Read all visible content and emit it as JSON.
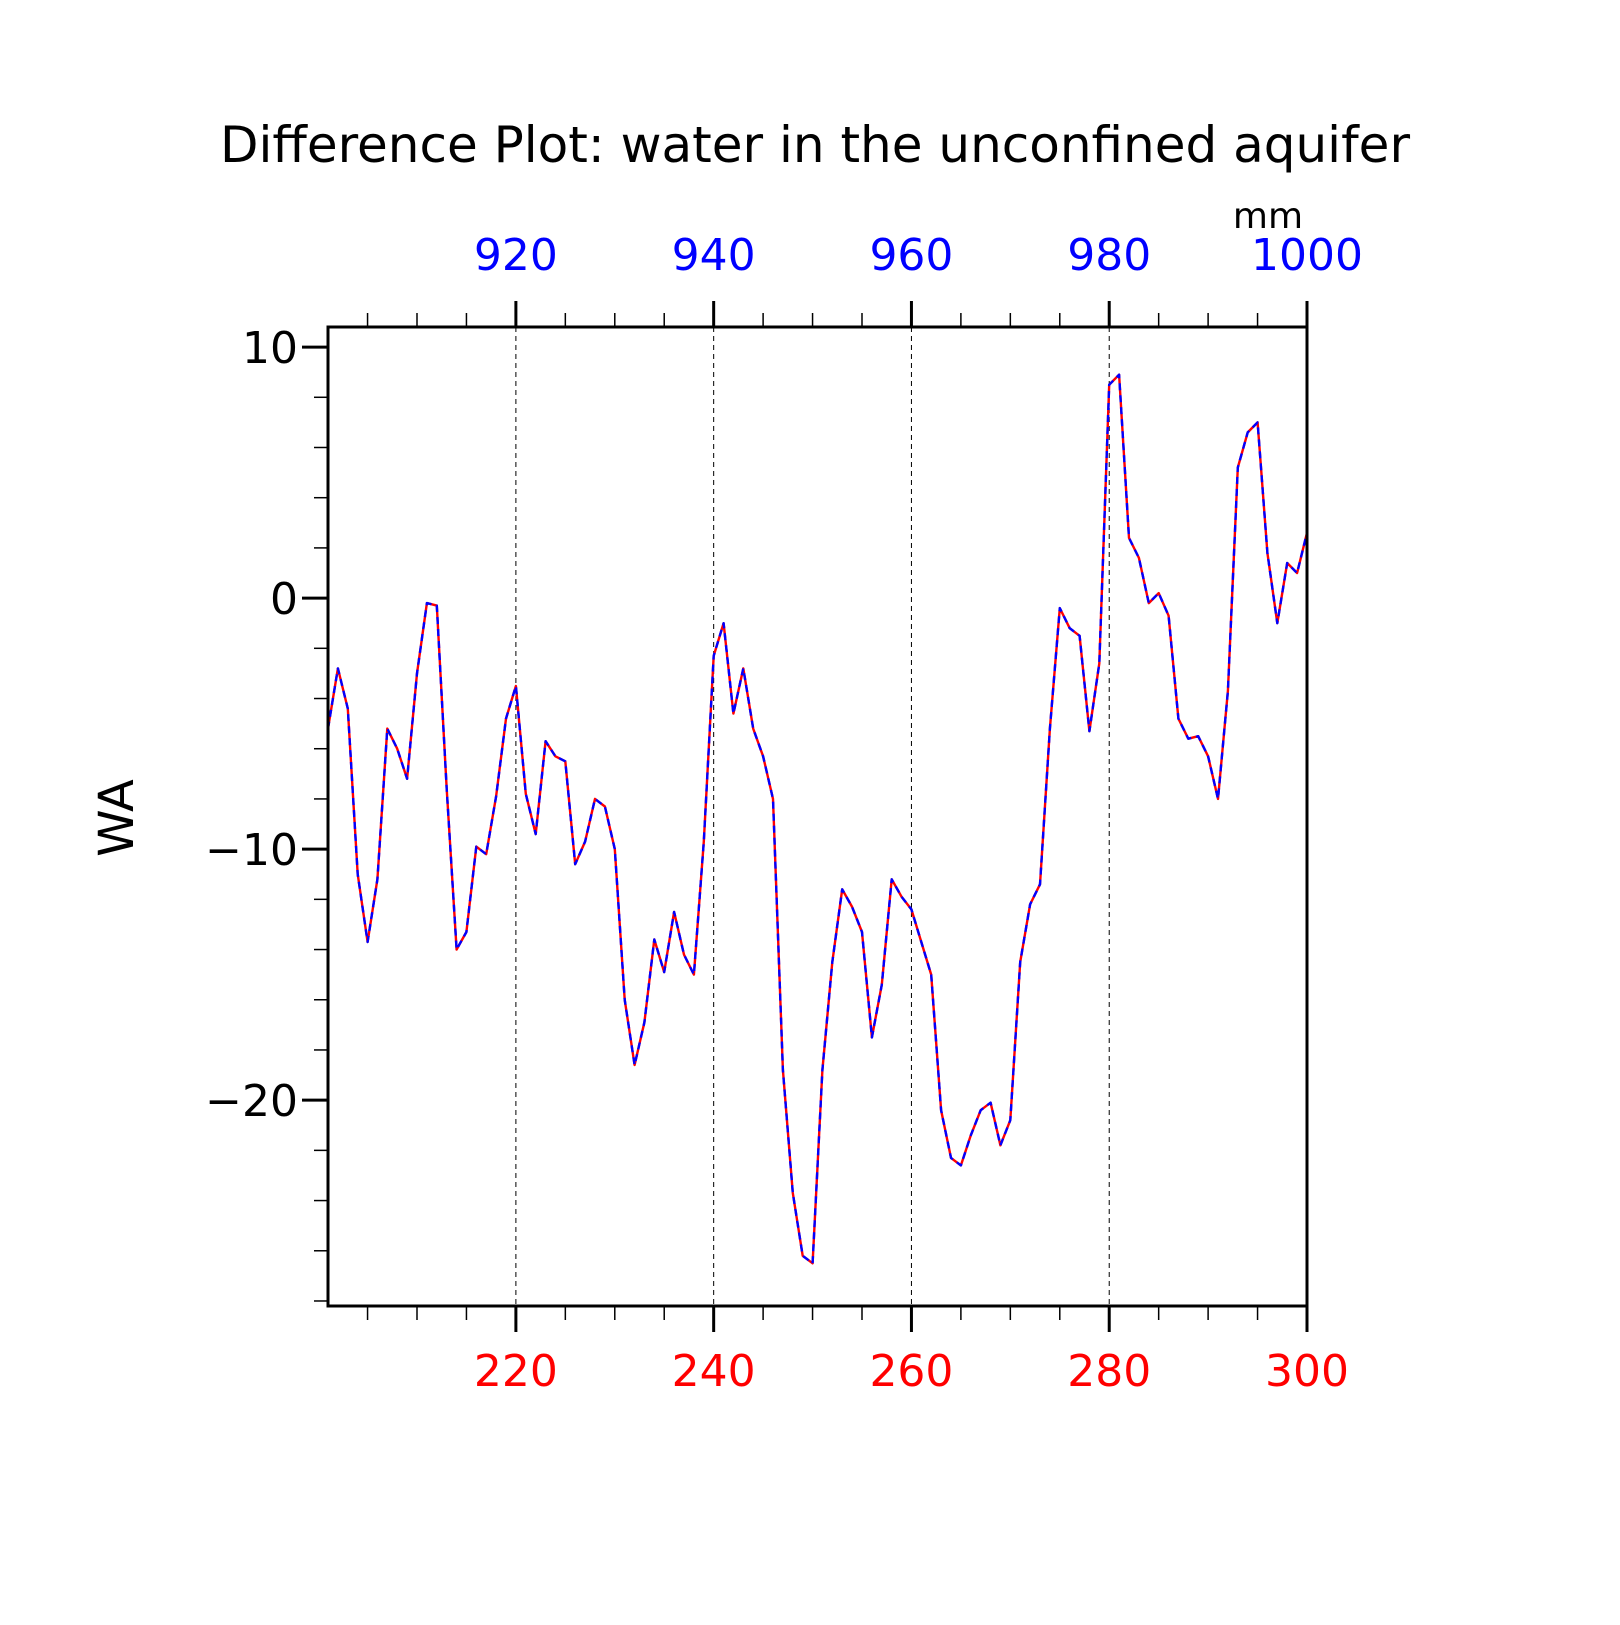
{
  "chart_data": {
    "type": "line",
    "title": "Difference Plot: water in the unconfined aquifer",
    "ylabel": "WA",
    "units_label": "mm",
    "x_bottom": {
      "ticks": [
        220,
        240,
        260,
        280,
        300
      ],
      "labels": [
        "220",
        "240",
        "260",
        "280",
        "300"
      ],
      "range": [
        201,
        300
      ],
      "color": "#ff0000"
    },
    "x_top": {
      "ticks": [
        920,
        940,
        960,
        980,
        1000
      ],
      "labels": [
        "920",
        "940",
        "960",
        "980",
        "1000"
      ],
      "range": [
        901,
        1000
      ],
      "color": "#0000ff"
    },
    "y_axis": {
      "ticks": [
        10,
        0,
        -10,
        -20
      ],
      "labels": [
        "10",
        "0",
        "−10",
        "−20"
      ],
      "range": [
        -28.2,
        10.8
      ]
    },
    "grid": "vertical-dashed",
    "x": [
      201,
      202,
      203,
      204,
      205,
      206,
      207,
      208,
      209,
      210,
      211,
      212,
      213,
      214,
      215,
      216,
      217,
      218,
      219,
      220,
      221,
      222,
      223,
      224,
      225,
      226,
      227,
      228,
      229,
      230,
      231,
      232,
      233,
      234,
      235,
      236,
      237,
      238,
      239,
      240,
      241,
      242,
      243,
      244,
      245,
      246,
      247,
      248,
      249,
      250,
      251,
      252,
      253,
      254,
      255,
      256,
      257,
      258,
      259,
      260,
      261,
      262,
      263,
      264,
      265,
      266,
      267,
      268,
      269,
      270,
      271,
      272,
      273,
      274,
      275,
      276,
      277,
      278,
      279,
      280,
      281,
      282,
      283,
      284,
      285,
      286,
      287,
      288,
      289,
      290,
      291,
      292,
      293,
      294,
      295,
      296,
      297,
      298,
      299,
      300
    ],
    "series": [
      {
        "color": "#ff0000",
        "style": "solid",
        "values": [
          -5.2,
          -2.8,
          -4.4,
          -11.0,
          -13.7,
          -11.2,
          -5.2,
          -6.0,
          -7.2,
          -3.0,
          -0.2,
          -0.3,
          -7.6,
          -14.0,
          -13.3,
          -9.9,
          -10.2,
          -7.9,
          -4.8,
          -3.5,
          -7.8,
          -9.4,
          -5.7,
          -6.3,
          -6.5,
          -10.6,
          -9.7,
          -8.0,
          -8.3,
          -10.0,
          -16.0,
          -18.6,
          -16.9,
          -13.6,
          -14.9,
          -12.5,
          -14.2,
          -15.0,
          -9.7,
          -2.3,
          -1.0,
          -4.6,
          -2.8,
          -5.2,
          -6.3,
          -8.0,
          -18.8,
          -23.7,
          -26.2,
          -26.5,
          -18.8,
          -14.5,
          -11.6,
          -12.3,
          -13.3,
          -17.5,
          -15.4,
          -11.2,
          -11.9,
          -12.4,
          -13.7,
          -15.0,
          -20.4,
          -22.3,
          -22.6,
          -21.4,
          -20.4,
          -20.1,
          -21.8,
          -20.8,
          -14.5,
          -12.2,
          -11.4,
          -5.2,
          -0.4,
          -1.2,
          -1.5,
          -5.3,
          -2.6,
          8.5,
          8.9,
          2.4,
          1.6,
          -0.2,
          0.2,
          -0.7,
          -4.8,
          -5.6,
          -5.5,
          -6.3,
          -8.0,
          -3.7,
          5.2,
          6.6,
          7.0,
          1.8,
          -1.0,
          1.4,
          1.0,
          2.6
        ]
      },
      {
        "color": "#0000ff",
        "style": "dashed",
        "values": [
          -5.2,
          -2.8,
          -4.4,
          -11.0,
          -13.7,
          -11.2,
          -5.2,
          -6.0,
          -7.2,
          -3.0,
          -0.2,
          -0.3,
          -7.6,
          -14.0,
          -13.3,
          -9.9,
          -10.2,
          -7.9,
          -4.8,
          -3.5,
          -7.8,
          -9.4,
          -5.7,
          -6.3,
          -6.5,
          -10.6,
          -9.7,
          -8.0,
          -8.3,
          -10.0,
          -16.0,
          -18.6,
          -16.9,
          -13.6,
          -14.9,
          -12.5,
          -14.2,
          -15.0,
          -9.7,
          -2.3,
          -1.0,
          -4.6,
          -2.8,
          -5.2,
          -6.3,
          -8.0,
          -18.8,
          -23.7,
          -26.2,
          -26.5,
          -18.8,
          -14.5,
          -11.6,
          -12.3,
          -13.3,
          -17.5,
          -15.4,
          -11.2,
          -11.9,
          -12.4,
          -13.7,
          -15.0,
          -20.4,
          -22.3,
          -22.6,
          -21.4,
          -20.4,
          -20.1,
          -21.8,
          -20.8,
          -14.5,
          -12.2,
          -11.4,
          -5.2,
          -0.4,
          -1.2,
          -1.5,
          -5.3,
          -2.6,
          8.5,
          8.9,
          2.4,
          1.6,
          -0.2,
          0.2,
          -0.7,
          -4.8,
          -5.6,
          -5.5,
          -6.3,
          -8.0,
          -3.7,
          5.2,
          6.6,
          7.0,
          1.8,
          -1.0,
          1.4,
          1.0,
          2.6
        ]
      }
    ]
  }
}
